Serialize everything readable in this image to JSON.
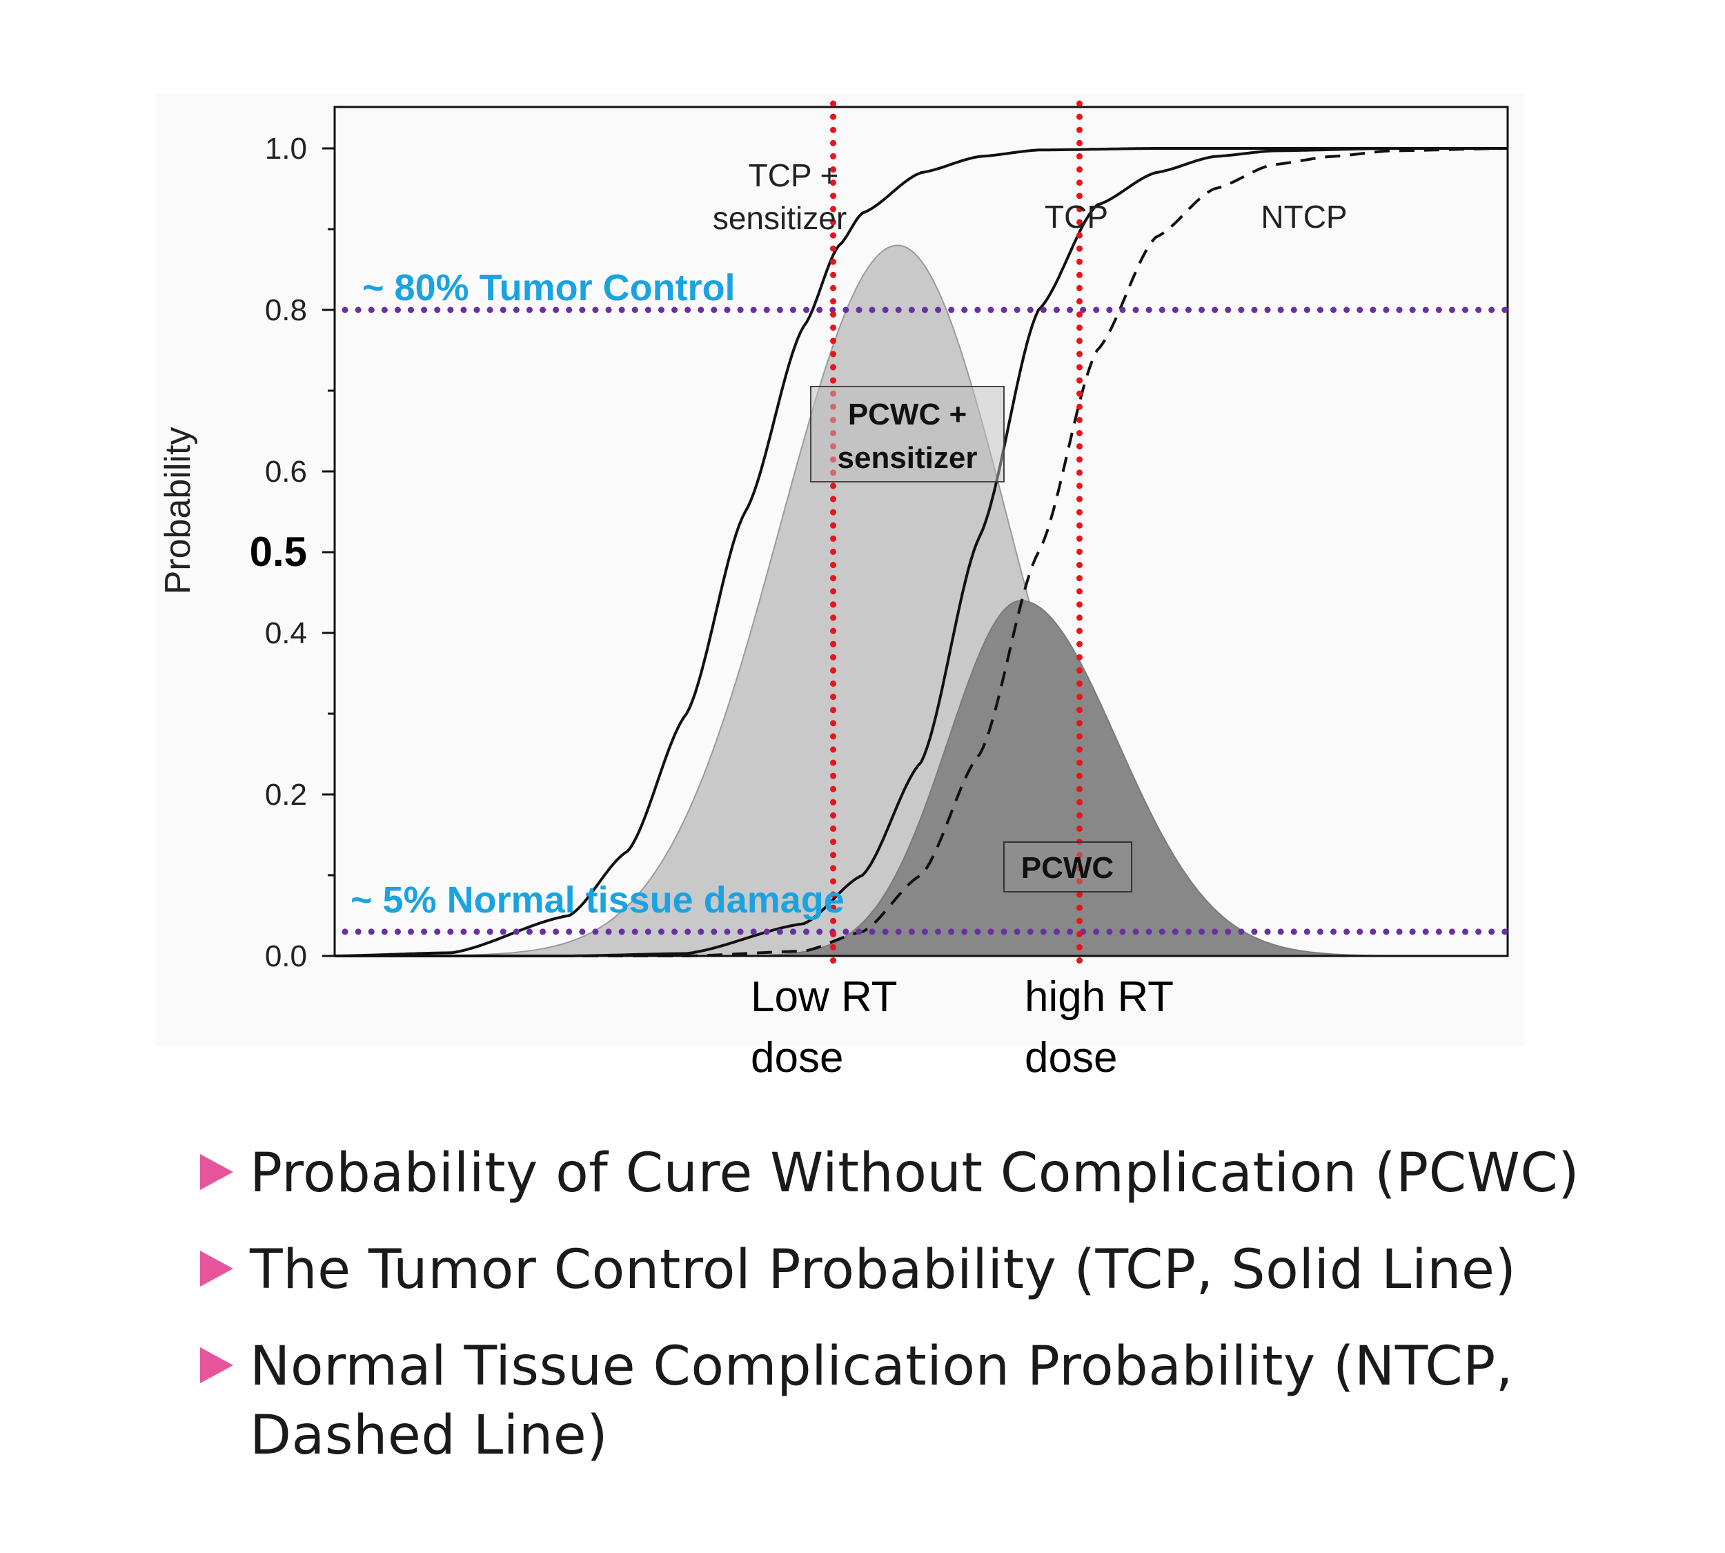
{
  "chart_data": {
    "type": "area",
    "ylabel": "Probability",
    "ylim": [
      0,
      1.05
    ],
    "xlim": [
      0,
      10
    ],
    "y_ticks": [
      "0.0",
      "0.2",
      "0.4",
      "0.6",
      "0.8",
      "1.0"
    ],
    "y_tick_values": [
      0,
      0.2,
      0.4,
      0.6,
      0.8,
      1.0
    ],
    "y_extra_tick": {
      "label": "0.5",
      "value": 0.5
    },
    "grid": false,
    "series": [
      {
        "name": "TCP + sensitizer",
        "style": "solid",
        "color": "#111111",
        "x": [
          0,
          1,
          2,
          2.5,
          3,
          3.5,
          4,
          4.3,
          4.5,
          5,
          5.5,
          6,
          7,
          8,
          9,
          10
        ],
        "y": [
          0.0,
          0.004,
          0.05,
          0.13,
          0.3,
          0.55,
          0.78,
          0.88,
          0.92,
          0.97,
          0.99,
          0.998,
          1.0,
          1.0,
          1.0,
          1.0
        ]
      },
      {
        "name": "TCP",
        "style": "solid",
        "color": "#111111",
        "x": [
          0,
          2,
          3,
          4,
          4.5,
          5,
          5.5,
          6,
          6.5,
          7,
          7.5,
          8,
          9,
          10
        ],
        "y": [
          0.0,
          0.0,
          0.003,
          0.04,
          0.1,
          0.24,
          0.52,
          0.8,
          0.93,
          0.97,
          0.99,
          0.997,
          1.0,
          1.0
        ]
      },
      {
        "name": "NTCP",
        "style": "dashed",
        "color": "#111111",
        "x": [
          0,
          3,
          4,
          4.5,
          5,
          5.5,
          6,
          6.5,
          7,
          7.5,
          8,
          8.5,
          9,
          10
        ],
        "y": [
          0.0,
          0.0,
          0.006,
          0.03,
          0.1,
          0.25,
          0.5,
          0.75,
          0.89,
          0.95,
          0.98,
          0.99,
          0.997,
          1.0
        ]
      }
    ],
    "areas": [
      {
        "name": "PCWC + sensitizer",
        "color": "#c9c9c9",
        "edge": "#9a9a9a",
        "peak_x": 4.8,
        "peak_y": 0.88,
        "left_width": 1.0,
        "right_width": 0.95
      },
      {
        "name": "PCWC",
        "color": "#888888",
        "edge": "#7a7a7a",
        "peak_x": 5.85,
        "peak_y": 0.44,
        "left_width": 0.62,
        "right_width": 0.82
      }
    ],
    "reference_lines": [
      {
        "orientation": "horizontal",
        "value": 0.8,
        "label": "~ 80% Tumor Control",
        "color": "#6a2fa3",
        "label_color": "#1aa3e0"
      },
      {
        "orientation": "horizontal",
        "value": 0.03,
        "label": "~ 5% Normal tissue damage",
        "color": "#6a2fa3",
        "label_color": "#1aa3e0"
      },
      {
        "orientation": "vertical",
        "value": 4.25,
        "label": "Low RT dose",
        "color": "#e8141c"
      },
      {
        "orientation": "vertical",
        "value": 6.35,
        "label": "high RT dose",
        "color": "#e8141c"
      }
    ],
    "annotations": {
      "tcp_sensitizer": [
        "TCP +",
        "sensitizer"
      ],
      "tcp": "TCP",
      "ntcp": "NTCP",
      "pcwc_sensitizer_box": [
        "PCWC +",
        "sensitizer"
      ],
      "pcwc_box": "PCWC",
      "low_dose": [
        "Low RT",
        "dose"
      ],
      "high_dose": [
        "high RT",
        "dose"
      ]
    }
  },
  "bullets": [
    "Probability of Cure Without Complication (PCWC)",
    "The Tumor Control Probability (TCP, Solid Line)",
    "Normal Tissue Complication Probability (NTCP, Dashed Line)"
  ],
  "colors": {
    "bullet_marker": "#e6559c"
  }
}
